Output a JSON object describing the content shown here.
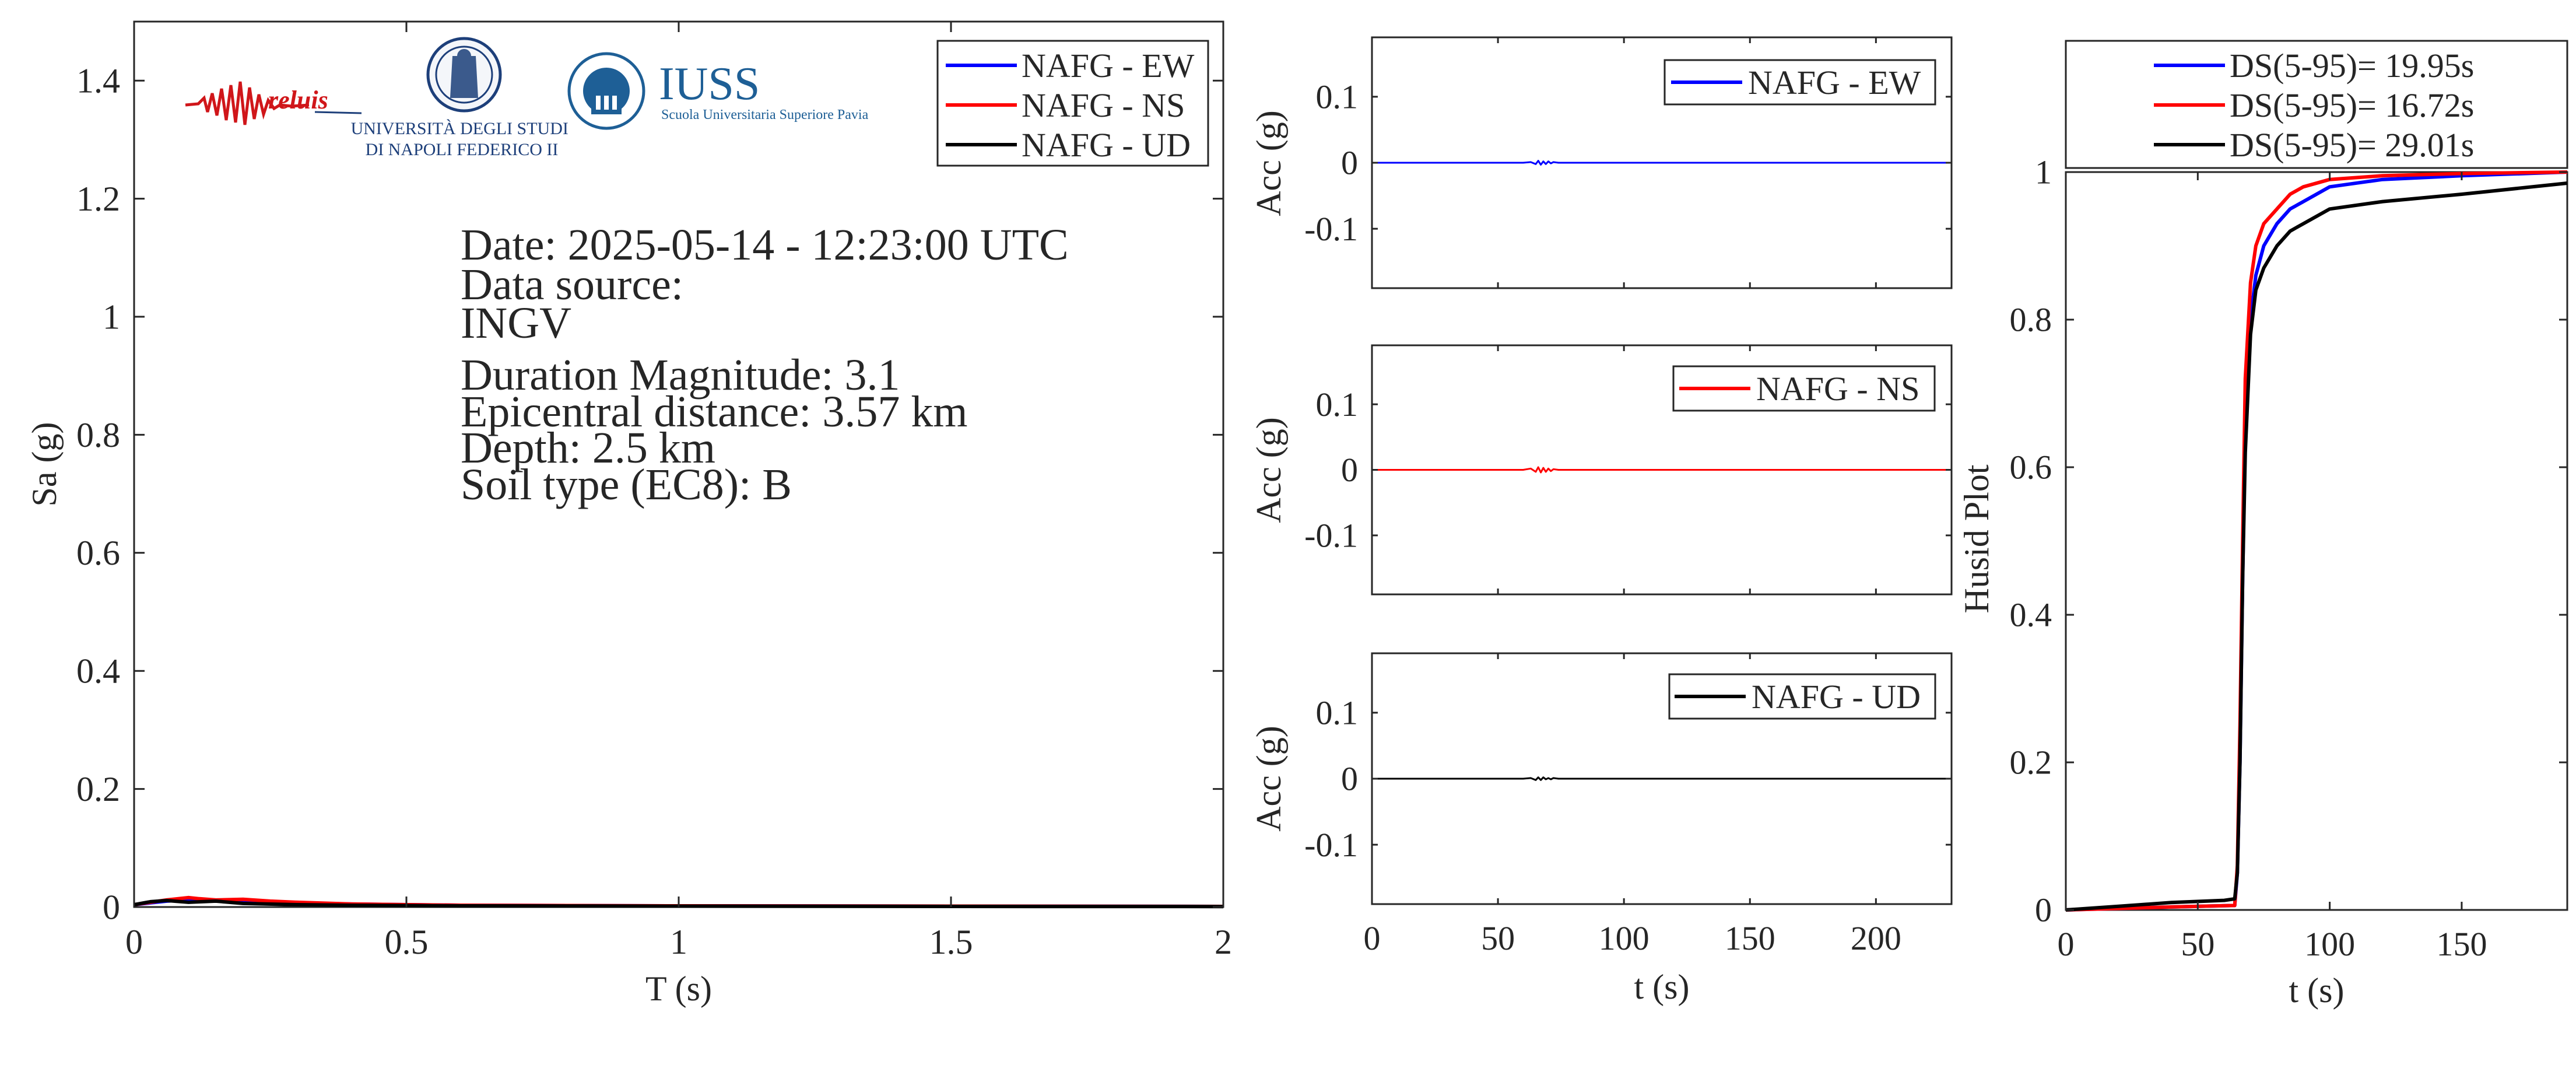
{
  "logos": {
    "reluis": "reluis",
    "unina": "UNIVERSITÀ DEGLI STUDI DI NAPOLI FEDERICO II",
    "iuss": "IUSS",
    "iuss_subtitle": "Scuola Universitaria Superiore Pavia"
  },
  "colors": {
    "ew": "#0000ff",
    "ns": "#ff0000",
    "ud": "#000000",
    "axis": "#262626"
  },
  "info": {
    "date": "Date: 2025-05-14 - 12:23:00 UTC",
    "source_label": "Data source:",
    "source": "INGV",
    "magnitude": "Duration Magnitude: 3.1",
    "distance": "Epicentral distance: 3.57 km",
    "depth": "Depth: 2.5 km",
    "soil": "Soil type (EC8): B"
  },
  "chart_data": [
    {
      "id": "spectrum",
      "type": "line",
      "xlabel": "T (s)",
      "ylabel": "Sa (g)",
      "xlim": [
        0,
        2
      ],
      "ylim": [
        0,
        1.5
      ],
      "xticks": [
        0,
        0.5,
        1,
        1.5,
        2
      ],
      "xtick_labels": [
        "0",
        "0.5",
        "1",
        "1.5",
        "2"
      ],
      "yticks": [
        0,
        0.2,
        0.4,
        0.6,
        0.8,
        1,
        1.2,
        1.4
      ],
      "ytick_labels": [
        "0",
        "0.2",
        "0.4",
        "0.6",
        "0.8",
        "1",
        "1.2",
        "1.4"
      ],
      "legend": "top-right",
      "series": [
        {
          "name": "NAFG - EW",
          "color": "#0000ff",
          "x": [
            0,
            0.03,
            0.06,
            0.1,
            0.15,
            0.2,
            0.3,
            0.4,
            0.6,
            1.0,
            1.5,
            2.0
          ],
          "y": [
            0.004,
            0.007,
            0.01,
            0.012,
            0.011,
            0.01,
            0.007,
            0.005,
            0.003,
            0.002,
            0.0015,
            0.001
          ]
        },
        {
          "name": "NAFG - NS",
          "color": "#ff0000",
          "x": [
            0,
            0.03,
            0.06,
            0.1,
            0.12,
            0.15,
            0.2,
            0.25,
            0.3,
            0.4,
            0.6,
            1.0,
            1.5,
            2.0
          ],
          "y": [
            0.004,
            0.008,
            0.012,
            0.016,
            0.014,
            0.012,
            0.013,
            0.01,
            0.008,
            0.005,
            0.003,
            0.002,
            0.0015,
            0.001
          ]
        },
        {
          "name": "NAFG - UD",
          "color": "#000000",
          "x": [
            0,
            0.03,
            0.06,
            0.1,
            0.15,
            0.2,
            0.3,
            0.4,
            0.6,
            1.0,
            1.5,
            2.0
          ],
          "y": [
            0.004,
            0.009,
            0.011,
            0.008,
            0.01,
            0.006,
            0.004,
            0.003,
            0.002,
            0.0015,
            0.001,
            0.0008
          ]
        }
      ]
    },
    {
      "id": "acc_ew",
      "type": "line",
      "xlabel": "",
      "ylabel": "Acc (g)",
      "xlim": [
        0,
        230
      ],
      "ylim": [
        -0.19,
        0.19
      ],
      "yticks": [
        0.1,
        0,
        -0.1
      ],
      "ytick_labels": [
        "0.1",
        "0",
        "-0.1"
      ],
      "legend": "top-right",
      "series": [
        {
          "name": "NAFG - EW",
          "color": "#0000ff",
          "x": [
            0,
            60,
            63,
            65,
            66,
            67,
            68,
            69,
            70,
            71,
            72,
            74,
            78,
            230
          ],
          "y": [
            0,
            0,
            0.001,
            -0.002,
            0.003,
            -0.003,
            0.002,
            -0.002,
            0.002,
            -0.001,
            0.001,
            0,
            0,
            0
          ]
        }
      ]
    },
    {
      "id": "acc_ns",
      "type": "line",
      "xlabel": "",
      "ylabel": "Acc (g)",
      "xlim": [
        0,
        230
      ],
      "ylim": [
        -0.19,
        0.19
      ],
      "yticks": [
        0.1,
        0,
        -0.1
      ],
      "ytick_labels": [
        "0.1",
        "0",
        "-0.1"
      ],
      "legend": "top-right",
      "series": [
        {
          "name": "NAFG - NS",
          "color": "#ff0000",
          "x": [
            0,
            60,
            63,
            65,
            66,
            67,
            68,
            69,
            70,
            71,
            72,
            74,
            78,
            230
          ],
          "y": [
            0,
            0,
            0.002,
            -0.003,
            0.004,
            -0.004,
            0.003,
            -0.003,
            0.002,
            -0.002,
            0.001,
            0,
            0,
            0
          ]
        }
      ]
    },
    {
      "id": "acc_ud",
      "type": "line",
      "xlabel": "t (s)",
      "ylabel": "Acc (g)",
      "xlim": [
        0,
        230
      ],
      "ylim": [
        -0.19,
        0.19
      ],
      "xticks": [
        0,
        50,
        100,
        150,
        200
      ],
      "xtick_labels": [
        "0",
        "50",
        "100",
        "150",
        "200"
      ],
      "yticks": [
        0.1,
        0,
        -0.1
      ],
      "ytick_labels": [
        "0.1",
        "0",
        "-0.1"
      ],
      "legend": "top-right",
      "series": [
        {
          "name": "NAFG - UD",
          "color": "#000000",
          "x": [
            0,
            60,
            63,
            65,
            66,
            67,
            68,
            69,
            70,
            71,
            72,
            74,
            78,
            230
          ],
          "y": [
            0,
            0,
            0.001,
            -0.002,
            0.002,
            -0.002,
            0.002,
            -0.001,
            0.001,
            -0.001,
            0.001,
            0,
            0,
            0
          ]
        }
      ]
    },
    {
      "id": "husid",
      "type": "line",
      "xlabel": "t (s)",
      "ylabel": "Husid Plot",
      "xlim": [
        0,
        190
      ],
      "ylim": [
        0,
        1
      ],
      "xticks": [
        0,
        50,
        100,
        150
      ],
      "xtick_labels": [
        "0",
        "50",
        "100",
        "150"
      ],
      "yticks": [
        0,
        0.2,
        0.4,
        0.6,
        0.8,
        1
      ],
      "ytick_labels": [
        "0",
        "0.2",
        "0.4",
        "0.6",
        "0.8",
        "1"
      ],
      "legend": "top",
      "series": [
        {
          "name": "DS(5-95)= 19.95s",
          "color": "#0000ff",
          "x": [
            0,
            20,
            40,
            64,
            65,
            66,
            67,
            68,
            70,
            72,
            75,
            80,
            85,
            90,
            100,
            120,
            150,
            190
          ],
          "y": [
            0,
            0.002,
            0.004,
            0.006,
            0.05,
            0.2,
            0.45,
            0.65,
            0.8,
            0.86,
            0.9,
            0.93,
            0.95,
            0.96,
            0.98,
            0.99,
            0.995,
            1.0
          ]
        },
        {
          "name": "DS(5-95)= 16.72s",
          "color": "#ff0000",
          "x": [
            0,
            20,
            40,
            64,
            65,
            66,
            67,
            68,
            70,
            72,
            75,
            80,
            85,
            90,
            100,
            120,
            150,
            190
          ],
          "y": [
            0,
            0.002,
            0.004,
            0.006,
            0.06,
            0.25,
            0.5,
            0.72,
            0.85,
            0.9,
            0.93,
            0.95,
            0.97,
            0.98,
            0.99,
            0.995,
            0.998,
            1.0
          ]
        },
        {
          "name": "DS(5-95)= 29.01s",
          "color": "#000000",
          "x": [
            0,
            20,
            40,
            60,
            64,
            65,
            66,
            67,
            68,
            70,
            72,
            75,
            80,
            85,
            90,
            100,
            120,
            150,
            190
          ],
          "y": [
            0,
            0.005,
            0.01,
            0.013,
            0.015,
            0.05,
            0.2,
            0.45,
            0.62,
            0.78,
            0.84,
            0.87,
            0.9,
            0.92,
            0.93,
            0.95,
            0.96,
            0.97,
            0.985
          ]
        }
      ]
    }
  ]
}
